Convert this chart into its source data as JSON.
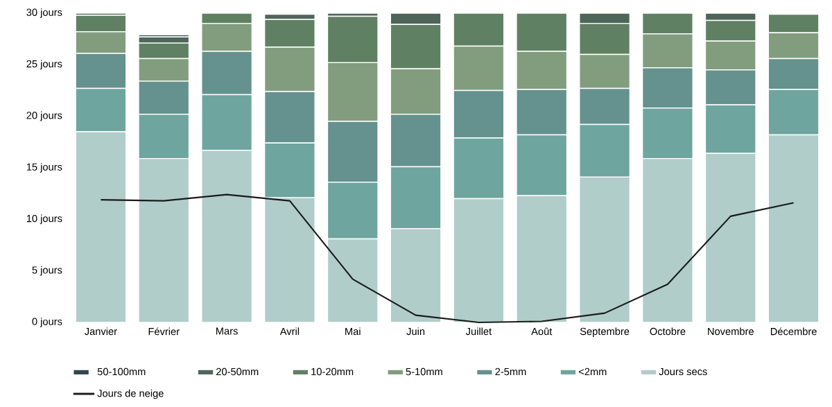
{
  "chart_data": {
    "type": "bar",
    "stacked": true,
    "legend": "bottom",
    "categories": [
      "Janvier",
      "Février",
      "Mars",
      "Avril",
      "Mai",
      "Juin",
      "Juillet",
      "Août",
      "Septembre",
      "Octobre",
      "Novembre",
      "Décembre"
    ],
    "ylim": [
      0,
      30
    ],
    "yticks": [
      {
        "value": 0,
        "label": "0 jours"
      },
      {
        "value": 5,
        "label": "5 jours"
      },
      {
        "value": 10,
        "label": "10 jours"
      },
      {
        "value": 15,
        "label": "15 jours"
      },
      {
        "value": 20,
        "label": "20 jours"
      },
      {
        "value": 25,
        "label": "25 jours"
      },
      {
        "value": 30,
        "label": "30 jours"
      }
    ],
    "series": [
      {
        "name": "Jours secs",
        "color": "#b0cdc9",
        "values": [
          18.5,
          15.9,
          16.7,
          12.1,
          8.1,
          9.1,
          12.0,
          12.3,
          14.1,
          15.9,
          16.4,
          18.2
        ]
      },
      {
        "name": "<2mm",
        "color": "#6ea59f",
        "values": [
          4.2,
          4.3,
          5.4,
          5.3,
          5.5,
          6.0,
          5.9,
          5.9,
          5.1,
          4.9,
          4.7,
          4.4
        ]
      },
      {
        "name": "2-5mm",
        "color": "#65918e",
        "values": [
          3.4,
          3.2,
          4.2,
          5.0,
          5.9,
          5.1,
          4.6,
          4.4,
          3.5,
          3.9,
          3.4,
          3.0
        ]
      },
      {
        "name": "5-10mm",
        "color": "#819d7e",
        "values": [
          2.1,
          2.2,
          2.7,
          4.3,
          5.7,
          4.4,
          4.3,
          3.7,
          3.3,
          3.3,
          2.8,
          2.5
        ]
      },
      {
        "name": "10-20mm",
        "color": "#608063",
        "values": [
          1.6,
          1.5,
          1.0,
          2.7,
          4.5,
          4.3,
          3.2,
          3.7,
          3.0,
          2.0,
          2.0,
          1.8
        ]
      },
      {
        "name": "20-50mm",
        "color": "#4e6659",
        "values": [
          0.2,
          0.6,
          0,
          0.5,
          0.3,
          1.1,
          0,
          0,
          1.0,
          0,
          0.7,
          0.1
        ]
      },
      {
        "name": "50-100mm",
        "color": "#2f474d",
        "values": [
          0,
          0.2,
          0,
          0,
          0,
          0,
          0,
          0,
          0,
          0,
          0,
          0
        ]
      },
      {
        "name": "Jours de neige",
        "type": "line",
        "color": "#1a1a1a",
        "values": [
          11.9,
          11.8,
          12.4,
          11.8,
          4.2,
          0.7,
          0,
          0.1,
          0.9,
          3.7,
          10.3,
          11.6
        ]
      }
    ]
  }
}
